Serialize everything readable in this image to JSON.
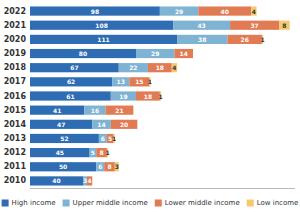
{
  "chart_data": {
    "type": "bar",
    "orientation": "horizontal",
    "stacked": true,
    "data_labels": true,
    "categories": [
      "2010",
      "2011",
      "2012",
      "2013",
      "2014",
      "2015",
      "2016",
      "2017",
      "2018",
      "2019",
      "2020",
      "2021",
      "2022"
    ],
    "series": [
      {
        "name": "High income",
        "color": "#2E6DB4",
        "values": [
          40,
          50,
          45,
          52,
          47,
          41,
          61,
          62,
          67,
          80,
          111,
          108,
          98
        ]
      },
      {
        "name": "Upper middle income",
        "color": "#7FB3D3",
        "values": [
          3,
          6,
          5,
          6,
          14,
          16,
          19,
          13,
          22,
          29,
          38,
          43,
          29
        ]
      },
      {
        "name": "Lower middle income",
        "color": "#E07B54",
        "values": [
          4,
          8,
          8,
          5,
          20,
          21,
          18,
          15,
          18,
          14,
          26,
          37,
          40
        ]
      },
      {
        "name": "Low income",
        "color": "#F5C96E",
        "values": [
          0,
          3,
          1,
          1,
          0,
          0,
          1,
          1,
          4,
          0,
          1,
          8,
          4
        ]
      }
    ],
    "xlim": [
      0,
      200
    ],
    "tick_labels": "y",
    "grid": false,
    "legend": "bottom"
  }
}
